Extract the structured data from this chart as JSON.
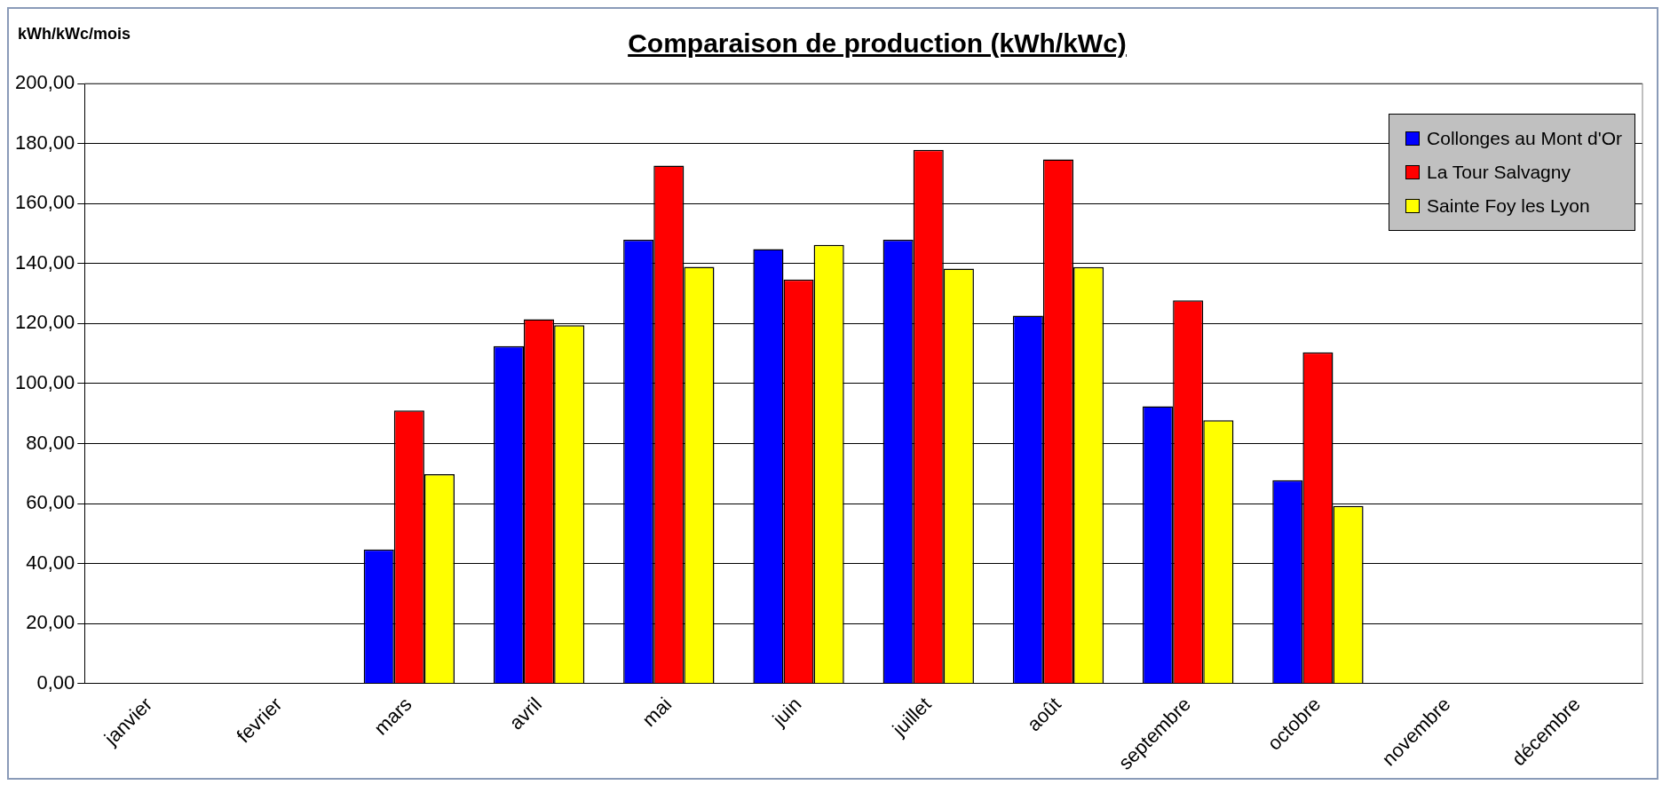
{
  "chart_data": {
    "type": "bar",
    "title": "Comparaison de production (kWh/kWc)",
    "ylabel": "kWh/kWc/mois",
    "categories": [
      "janvier",
      "fevrier",
      "mars",
      "avril",
      "mai",
      "juin",
      "juillet",
      "août",
      "septembre",
      "octobre",
      "novembre",
      "décembre"
    ],
    "series": [
      {
        "name": "Collonges au Mont d'Or",
        "color": "#0000ff",
        "values": [
          null,
          null,
          44.7,
          112.5,
          147.9,
          144.8,
          147.9,
          122.6,
          92.4,
          67.8,
          null,
          null
        ]
      },
      {
        "name": "La Tour Salvagny",
        "color": "#ff0000",
        "values": [
          null,
          null,
          91.0,
          121.4,
          172.6,
          134.7,
          177.9,
          174.7,
          127.7,
          110.4,
          null,
          null
        ]
      },
      {
        "name": "Sainte Foy les Lyon",
        "color": "#ffff00",
        "values": [
          null,
          null,
          69.8,
          119.4,
          138.9,
          146.2,
          138.3,
          138.8,
          87.8,
          59.2,
          null,
          null
        ]
      }
    ],
    "ylim": [
      0,
      200
    ],
    "yticks": [
      {
        "value": 0,
        "label": "0,00"
      },
      {
        "value": 20,
        "label": "20,00"
      },
      {
        "value": 40,
        "label": "40,00"
      },
      {
        "value": 60,
        "label": "60,00"
      },
      {
        "value": 80,
        "label": "80,00"
      },
      {
        "value": 100,
        "label": "100,00"
      },
      {
        "value": 120,
        "label": "120,00"
      },
      {
        "value": 140,
        "label": "140,00"
      },
      {
        "value": 160,
        "label": "160,00"
      },
      {
        "value": 180,
        "label": "180,00"
      },
      {
        "value": 200,
        "label": "200,00"
      }
    ],
    "grid": "y",
    "legend": "top right"
  }
}
